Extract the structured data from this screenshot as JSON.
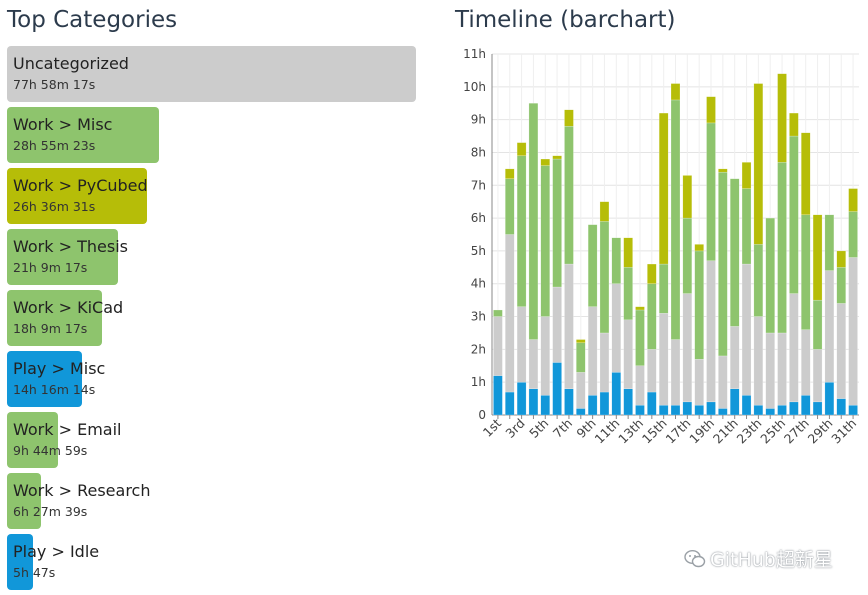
{
  "categories_panel": {
    "title": "Top Categories",
    "max_minutes": 4678.3,
    "items": [
      {
        "label": "Uncategorized",
        "time": "77h 58m 17s",
        "minutes": 4678.3,
        "color": "#cccccc"
      },
      {
        "label": "Work > Misc",
        "time": "28h 55m 23s",
        "minutes": 1735.4,
        "color": "#8ec46d"
      },
      {
        "label": "Work > PyCubed",
        "time": "26h 36m 31s",
        "minutes": 1596.5,
        "color": "#b6bd08"
      },
      {
        "label": "Work > Thesis",
        "time": "21h 9m 17s",
        "minutes": 1269.3,
        "color": "#8ec46d"
      },
      {
        "label": "Work > KiCad",
        "time": "18h 9m 17s",
        "minutes": 1089.3,
        "color": "#8ec46d"
      },
      {
        "label": "Play > Misc",
        "time": "14h 16m 14s",
        "minutes": 856.2,
        "color": "#1197d9"
      },
      {
        "label": "Work > Email",
        "time": "9h 44m 59s",
        "minutes": 585.0,
        "color": "#8ec46d"
      },
      {
        "label": "Work > Research",
        "time": "6h 27m 39s",
        "minutes": 387.7,
        "color": "#8ec46d"
      },
      {
        "label": "Play > Idle",
        "time": "5h 47s",
        "minutes": 300.8,
        "color": "#1197d9"
      }
    ]
  },
  "chart_data": {
    "type": "bar",
    "title": "Timeline (barchart)",
    "stacked": true,
    "xlabel": "",
    "ylabel": "",
    "ylim": [
      0,
      11
    ],
    "ytick_labels": [
      "0",
      "1h",
      "2h",
      "3h",
      "4h",
      "5h",
      "6h",
      "7h",
      "8h",
      "9h",
      "10h",
      "11h"
    ],
    "categories": [
      "1st",
      "2nd",
      "3rd",
      "4th",
      "5th",
      "6th",
      "7th",
      "8th",
      "9th",
      "10th",
      "11th",
      "12th",
      "13th",
      "14th",
      "15th",
      "16th",
      "17th",
      "18th",
      "19th",
      "20th",
      "21th",
      "22th",
      "23th",
      "24th",
      "25th",
      "26th",
      "27th",
      "28th",
      "29th",
      "30th",
      "31th"
    ],
    "xtick_labels": [
      "1st",
      "",
      "3rd",
      "",
      "5th",
      "",
      "7th",
      "",
      "9th",
      "",
      "11th",
      "",
      "13th",
      "",
      "15th",
      "",
      "17th",
      "",
      "19th",
      "",
      "21th",
      "",
      "23th",
      "",
      "25th",
      "",
      "27th",
      "",
      "29th",
      "",
      "31th"
    ],
    "series": [
      {
        "name": "Play",
        "color": "#1197d9",
        "values": [
          1.2,
          0.7,
          1.0,
          0.8,
          0.6,
          1.6,
          0.8,
          0.2,
          0.6,
          0.7,
          1.3,
          0.8,
          0.3,
          0.7,
          0.3,
          0.3,
          0.4,
          0.3,
          0.4,
          0.2,
          0.8,
          0.6,
          0.3,
          0.2,
          0.3,
          0.4,
          0.6,
          0.4,
          1.0,
          0.5,
          0.3
        ]
      },
      {
        "name": "Uncategorized",
        "color": "#cccccc",
        "values": [
          1.8,
          4.8,
          2.3,
          1.5,
          2.4,
          2.3,
          3.8,
          1.1,
          2.7,
          1.8,
          2.7,
          2.1,
          1.2,
          1.3,
          2.8,
          2.0,
          3.3,
          1.4,
          4.3,
          1.6,
          1.9,
          4.0,
          2.7,
          2.3,
          2.2,
          3.3,
          2.0,
          1.6,
          3.4,
          2.9,
          4.5
        ]
      },
      {
        "name": "Work",
        "color": "#8ec46d",
        "values": [
          0.2,
          1.7,
          4.6,
          7.2,
          4.6,
          3.9,
          4.2,
          0.9,
          2.5,
          3.4,
          1.4,
          1.6,
          1.7,
          2.0,
          1.5,
          7.3,
          2.3,
          3.3,
          4.2,
          5.6,
          4.5,
          2.3,
          2.2,
          3.5,
          5.2,
          4.8,
          3.5,
          1.5,
          1.7,
          1.1,
          1.4
        ]
      },
      {
        "name": "Work > PyCubed",
        "color": "#b6bd08",
        "values": [
          0,
          0.3,
          0.4,
          0,
          0.2,
          0.1,
          0.5,
          0.1,
          0,
          0.6,
          0,
          0.9,
          0.1,
          0.6,
          4.6,
          0.5,
          1.3,
          0.2,
          0.8,
          0.1,
          0,
          0.8,
          4.9,
          0,
          2.7,
          0.7,
          2.5,
          2.6,
          0,
          0.5,
          0.7
        ]
      }
    ]
  },
  "watermark": {
    "text": "GitHub超新星"
  }
}
